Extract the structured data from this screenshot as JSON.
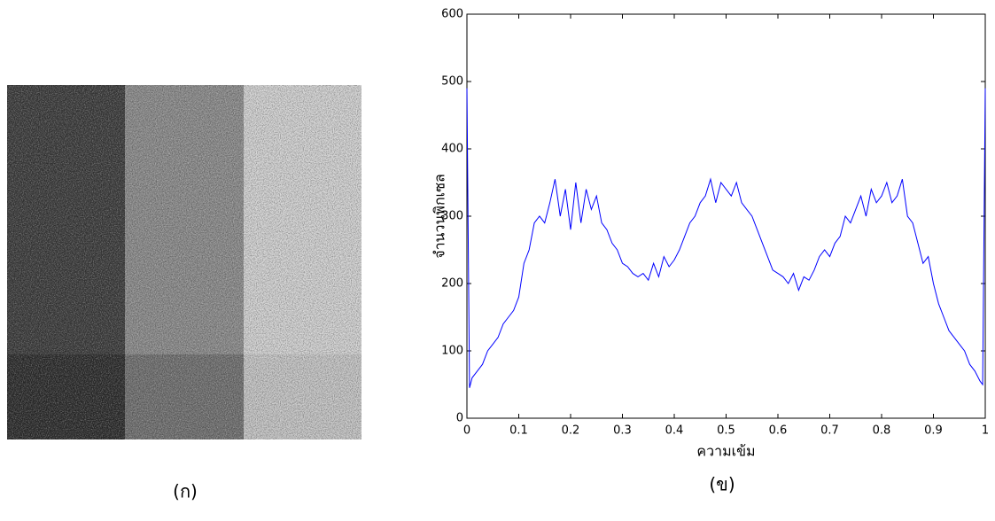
{
  "chart_data": {
    "type": "line",
    "ylabel": "จำนวนพิกเซล",
    "xlabel": "ความเข้ม",
    "x": [
      0,
      0.005,
      0.01,
      0.02,
      0.03,
      0.04,
      0.05,
      0.06,
      0.07,
      0.08,
      0.09,
      0.1,
      0.11,
      0.12,
      0.13,
      0.14,
      0.15,
      0.16,
      0.17,
      0.18,
      0.19,
      0.2,
      0.21,
      0.22,
      0.23,
      0.24,
      0.25,
      0.26,
      0.27,
      0.28,
      0.29,
      0.3,
      0.31,
      0.32,
      0.33,
      0.34,
      0.35,
      0.36,
      0.37,
      0.38,
      0.39,
      0.4,
      0.41,
      0.42,
      0.43,
      0.44,
      0.45,
      0.46,
      0.47,
      0.48,
      0.49,
      0.5,
      0.51,
      0.52,
      0.53,
      0.54,
      0.55,
      0.56,
      0.57,
      0.58,
      0.59,
      0.6,
      0.61,
      0.62,
      0.63,
      0.64,
      0.65,
      0.66,
      0.67,
      0.68,
      0.69,
      0.7,
      0.71,
      0.72,
      0.73,
      0.74,
      0.75,
      0.76,
      0.77,
      0.78,
      0.79,
      0.8,
      0.81,
      0.82,
      0.83,
      0.84,
      0.85,
      0.86,
      0.87,
      0.88,
      0.89,
      0.9,
      0.91,
      0.92,
      0.93,
      0.94,
      0.95,
      0.96,
      0.97,
      0.98,
      0.99,
      0.995,
      1
    ],
    "series": [
      {
        "color": "#0000ff",
        "values": [
          490,
          45,
          60,
          70,
          80,
          100,
          110,
          120,
          140,
          150,
          160,
          180,
          230,
          250,
          290,
          300,
          290,
          320,
          355,
          300,
          340,
          280,
          350,
          290,
          340,
          310,
          330,
          290,
          280,
          260,
          250,
          230,
          225,
          215,
          210,
          215,
          205,
          230,
          210,
          240,
          225,
          235,
          250,
          270,
          290,
          300,
          320,
          330,
          355,
          320,
          350,
          340,
          330,
          350,
          320,
          310,
          300,
          280,
          260,
          240,
          220,
          215,
          210,
          200,
          215,
          190,
          210,
          205,
          220,
          240,
          250,
          240,
          260,
          270,
          300,
          290,
          310,
          330,
          300,
          340,
          320,
          330,
          350,
          320,
          330,
          355,
          300,
          290,
          260,
          230,
          240,
          200,
          170,
          150,
          130,
          120,
          110,
          100,
          80,
          70,
          55,
          50,
          490
        ]
      }
    ],
    "xlim": [
      0,
      1
    ],
    "ylim": [
      0,
      600
    ],
    "xticks": [
      0,
      0.1,
      0.2,
      0.3,
      0.4,
      0.5,
      0.6,
      0.7,
      0.8,
      0.9,
      1
    ],
    "yticks": [
      0,
      100,
      200,
      300,
      400,
      500,
      600
    ]
  },
  "captions": [
    "(ก)",
    "(ข)"
  ]
}
